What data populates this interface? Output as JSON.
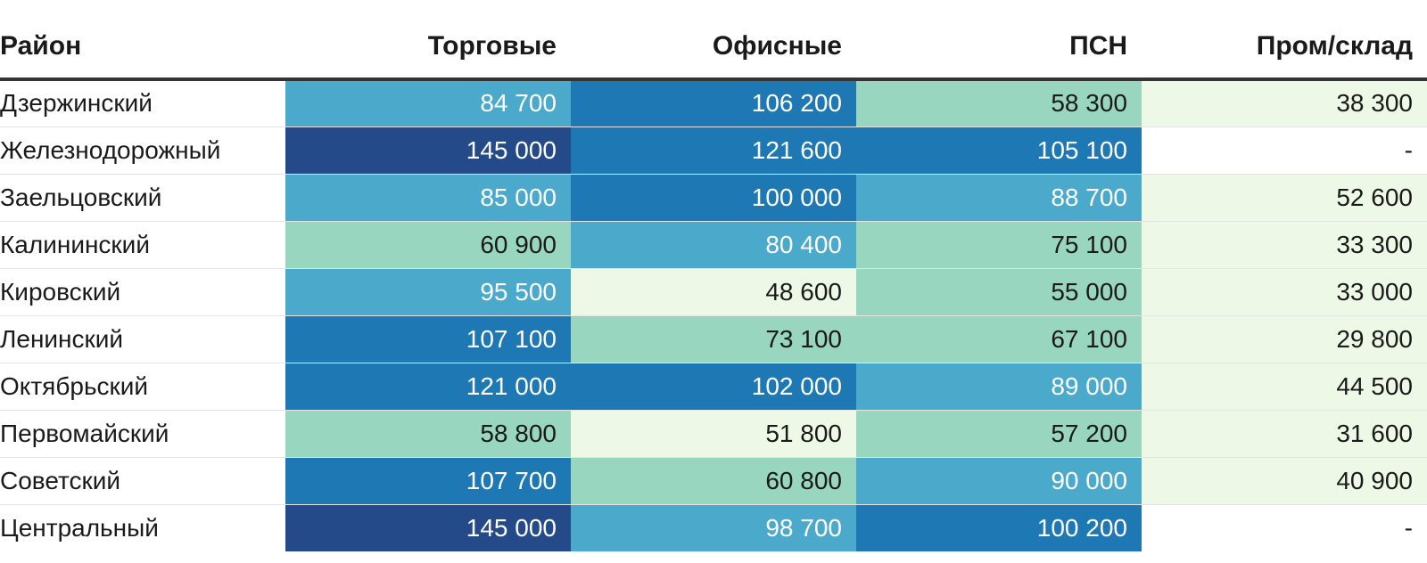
{
  "chart_data": {
    "type": "table",
    "columns": [
      "Район",
      "Торговые",
      "Офисные",
      "ПСН",
      "Пром/склад"
    ],
    "rows": [
      {
        "name": "Дзержинский",
        "values": [
          "84 700",
          "106 200",
          "58 300",
          "38 300"
        ]
      },
      {
        "name": "Железнодорожный",
        "values": [
          "145 000",
          "121 600",
          "105 100",
          "-"
        ]
      },
      {
        "name": "Заельцовский",
        "values": [
          "85 000",
          "100 000",
          "88 700",
          "52 600"
        ]
      },
      {
        "name": "Калининский",
        "values": [
          "60 900",
          "80 400",
          "75 100",
          "33 300"
        ]
      },
      {
        "name": "Кировский",
        "values": [
          "95 500",
          "48 600",
          "55 000",
          "33 000"
        ]
      },
      {
        "name": "Ленинский",
        "values": [
          "107 100",
          "73 100",
          "67 100",
          "29 800"
        ]
      },
      {
        "name": "Октябрьский",
        "values": [
          "121 000",
          "102 000",
          "89 000",
          "44 500"
        ]
      },
      {
        "name": "Первомайский",
        "values": [
          "58 800",
          "51 800",
          "57 200",
          "31 600"
        ]
      },
      {
        "name": "Советский",
        "values": [
          "107 700",
          "60 800",
          "90 000",
          "40 900"
        ]
      },
      {
        "name": "Центральный",
        "values": [
          "145 000",
          "98 700",
          "100 200",
          "-"
        ]
      }
    ],
    "color_scale": {
      "thresholds": [
        0,
        55000,
        80000,
        100000,
        130000
      ],
      "fills": [
        "#eef8e6",
        "#98d6c0",
        "#4ba9cc",
        "#1e78b4",
        "#254a8a"
      ],
      "text": [
        "#1a1a1a",
        "#1a1a1a",
        "#ffffff",
        "#ffffff",
        "#ffffff"
      ],
      "empty_fill": "#ffffff",
      "empty_text": "#1a1a1a"
    }
  }
}
